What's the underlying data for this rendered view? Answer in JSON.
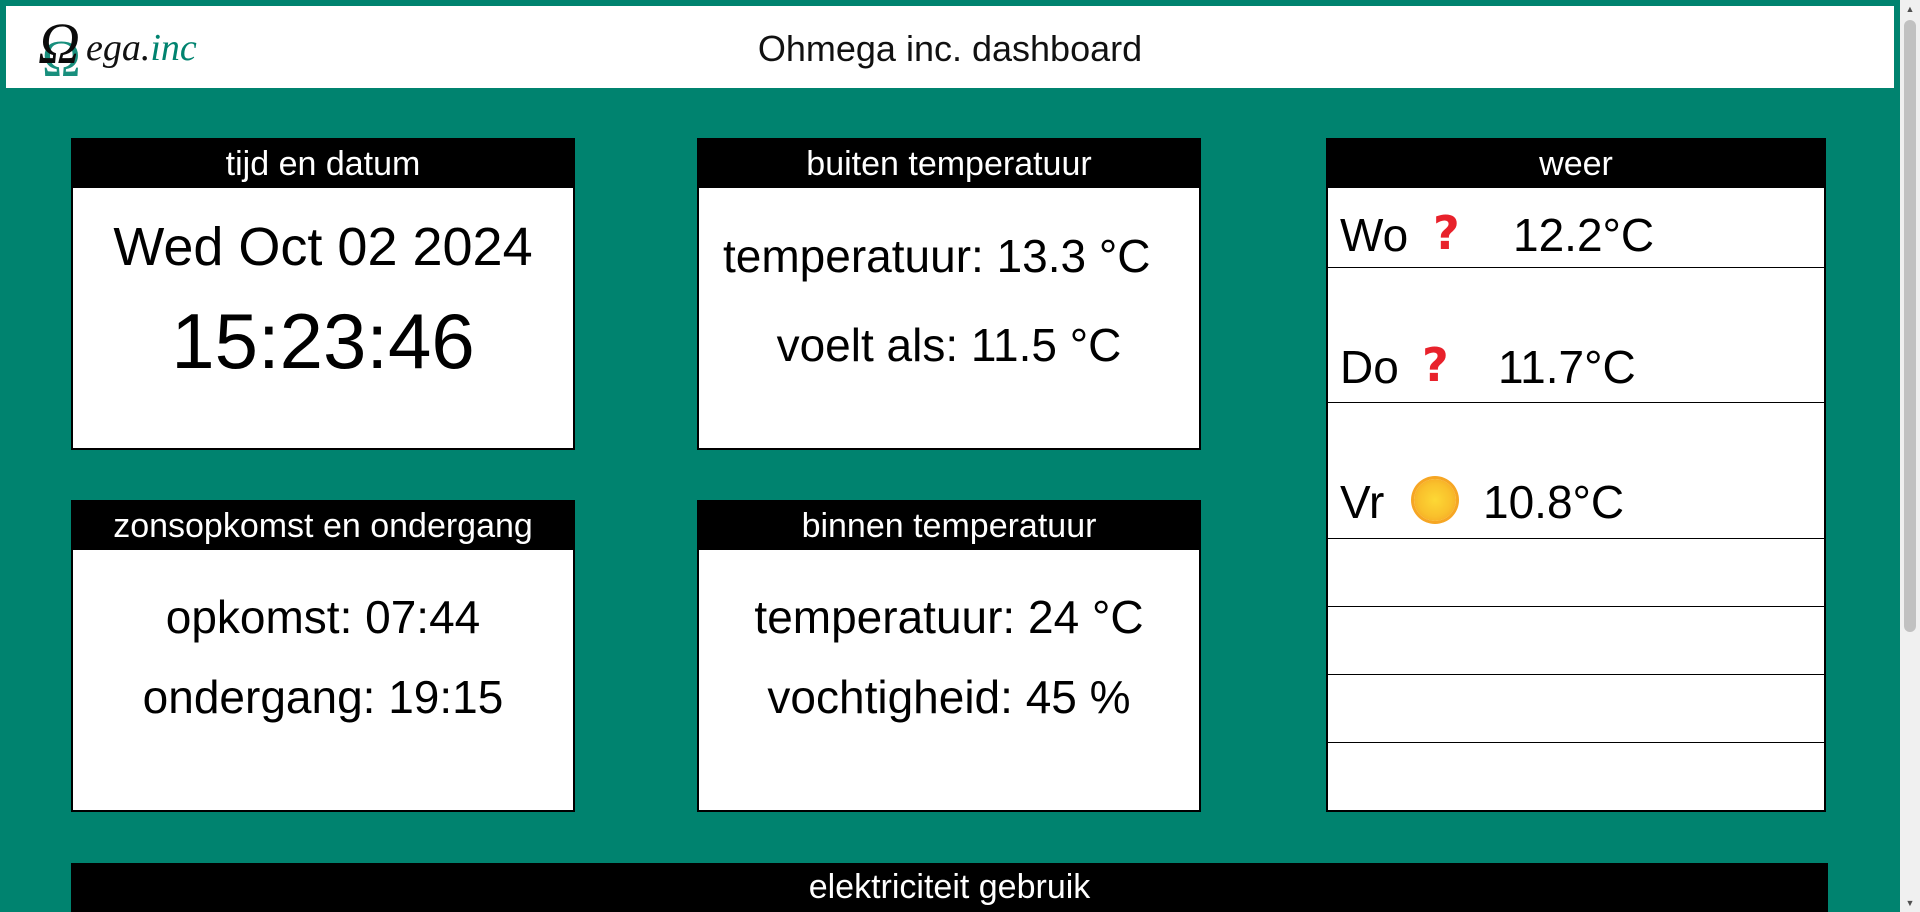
{
  "header": {
    "logo_omega": "Ω",
    "logo_text": "ega.",
    "logo_inc": "inc",
    "title": "Ohmega inc. dashboard"
  },
  "time_card": {
    "title": "tijd en datum",
    "date": "Wed Oct 02 2024",
    "time": "15:23:46"
  },
  "outside_card": {
    "title": "buiten temperatuur",
    "temperature": "temperatuur: 13.3 °C",
    "feels_like": "voelt als: 11.5 °C"
  },
  "sun_card": {
    "title": "zonsopkomst en ondergang",
    "sunrise": "opkomst: 07:44",
    "sunset": "ondergang: 19:15"
  },
  "inside_card": {
    "title": "binnen temperatuur",
    "temperature": "temperatuur: 24 °C",
    "humidity": "vochtigheid: 45 %"
  },
  "weather_card": {
    "title": "weer",
    "days": [
      {
        "day": "Wo",
        "icon": "question-mark-icon",
        "icon_glyph": "?",
        "temp": "12.2°C"
      },
      {
        "day": "Do",
        "icon": "question-mark-icon",
        "icon_glyph": "?",
        "temp": "11.7°C"
      },
      {
        "day": "Vr",
        "icon": "sun-icon",
        "icon_glyph": "",
        "temp": "10.8°C"
      }
    ]
  },
  "electricity": {
    "title": "elektriciteit gebruik"
  },
  "colors": {
    "background": "#00836f",
    "header_bg": "#ffffff",
    "card_header_bg": "#000000",
    "question_mark": "#e8212b",
    "sun": "#f9c02c"
  }
}
